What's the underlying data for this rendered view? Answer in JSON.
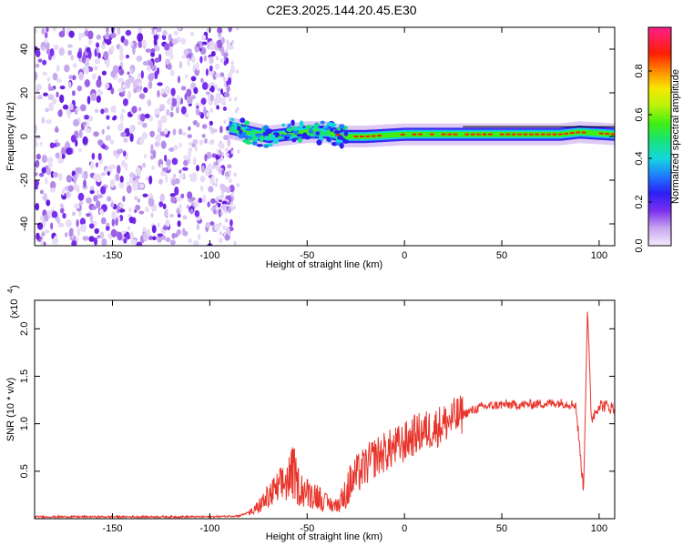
{
  "figure_title": "C2E3.2025.144.20.45.E30",
  "chart_data": [
    {
      "type": "heatmap",
      "xlabel": "Height of straight line (km)",
      "ylabel": "Frequency (Hz)",
      "xlim": [
        -190,
        108
      ],
      "ylim": [
        -50,
        50
      ],
      "x_ticks": [
        -150,
        -100,
        -50,
        0,
        50,
        100
      ],
      "x_tick_labels": [
        "-150",
        "-100",
        "-50",
        "0",
        "50",
        "100"
      ],
      "y_ticks": [
        -40,
        -20,
        0,
        20,
        40
      ],
      "y_tick_labels": [
        "-40",
        "-20",
        "0",
        "20",
        "40"
      ],
      "colorbar": {
        "label": "Normalized spectral amplitude",
        "range": [
          0,
          1
        ],
        "ticks": [
          0.0,
          0.2,
          0.4,
          0.6,
          0.8
        ],
        "tick_labels": [
          "0.0",
          "0.2",
          "0.4",
          "0.6",
          "0.8"
        ]
      },
      "signal_track": {
        "description_points": [
          [
            -90,
            4
          ],
          [
            -80,
            2
          ],
          [
            -70,
            0
          ],
          [
            -60,
            1
          ],
          [
            -50,
            2
          ],
          [
            -40,
            2
          ],
          [
            -30,
            0
          ],
          [
            -20,
            0
          ],
          [
            0,
            1
          ],
          [
            20,
            1
          ],
          [
            50,
            1
          ],
          [
            80,
            1
          ],
          [
            90,
            2
          ],
          [
            108,
            1
          ]
        ]
      },
      "noise_region": [
        -190,
        -88
      ]
    },
    {
      "type": "line",
      "xlabel": "Height of straight line (km)",
      "ylabel": "SNR (10 * v/v)",
      "scale_note": "(x10",
      "scale_exponent": "4",
      "xlim": [
        -190,
        108
      ],
      "ylim": [
        0,
        2.3
      ],
      "x_ticks": [
        -150,
        -100,
        -50,
        0,
        50,
        100
      ],
      "x_tick_labels": [
        "-150",
        "-100",
        "-50",
        "0",
        "50",
        "100"
      ],
      "y_ticks": [
        0.5,
        1.0,
        1.5,
        2.0
      ],
      "y_tick_labels": [
        "0.5",
        "1.0",
        "1.5",
        "2.0"
      ],
      "color": "#e8352b",
      "envelope_points": [
        [
          -190,
          0.02
        ],
        [
          -100,
          0.02
        ],
        [
          -85,
          0.03
        ],
        [
          -78,
          0.08
        ],
        [
          -70,
          0.25
        ],
        [
          -65,
          0.35
        ],
        [
          -60,
          0.45
        ],
        [
          -57,
          0.55
        ],
        [
          -55,
          0.4
        ],
        [
          -50,
          0.3
        ],
        [
          -45,
          0.28
        ],
        [
          -40,
          0.18
        ],
        [
          -35,
          0.15
        ],
        [
          -30,
          0.3
        ],
        [
          -25,
          0.45
        ],
        [
          -20,
          0.55
        ],
        [
          -15,
          0.65
        ],
        [
          -10,
          0.7
        ],
        [
          -5,
          0.75
        ],
        [
          0,
          0.8
        ],
        [
          5,
          0.88
        ],
        [
          10,
          0.92
        ],
        [
          15,
          0.95
        ],
        [
          20,
          1.0
        ],
        [
          30,
          1.1
        ],
        [
          40,
          1.18
        ],
        [
          50,
          1.2
        ],
        [
          60,
          1.2
        ],
        [
          70,
          1.21
        ],
        [
          80,
          1.22
        ],
        [
          88,
          1.2
        ],
        [
          92,
          0.3
        ],
        [
          94,
          2.2
        ],
        [
          96,
          1.05
        ],
        [
          100,
          1.2
        ],
        [
          105,
          1.18
        ],
        [
          108,
          1.15
        ]
      ]
    }
  ]
}
